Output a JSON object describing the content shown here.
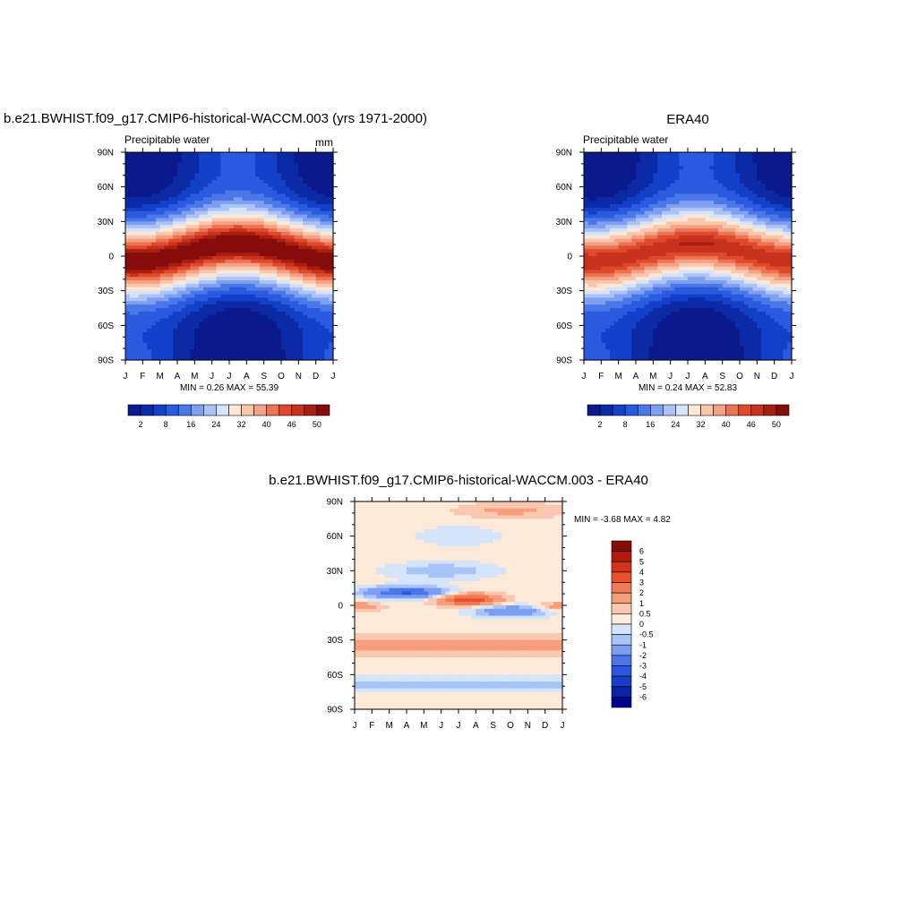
{
  "colorbar_colors": [
    "#0a1a8c",
    "#0d2aa6",
    "#1340c8",
    "#2a5ae0",
    "#4a78e8",
    "#7f9ff0",
    "#aec3f5",
    "#d6e3fa",
    "#fde8d6",
    "#f8c7ad",
    "#f4a184",
    "#ec7453",
    "#e04a2c",
    "#c8321c",
    "#a81e10",
    "#860c0c"
  ],
  "diff_colors": [
    "#00008c",
    "#0a23a6",
    "#1a3cc8",
    "#2b56e0",
    "#4a76ea",
    "#7b9ef2",
    "#aac3f6",
    "#d4e4fb",
    "#fde9d8",
    "#fac8b0",
    "#f69d7c",
    "#f07a52",
    "#e8502e",
    "#d4321a",
    "#b01a0c",
    "#860c0c"
  ],
  "panels": [
    {
      "title": "b.e21.BWHIST.f09_g17.CMIP6-historical-WACCM.003 (yrs 1971-2000)",
      "subtitle": "Precipitable water",
      "units": "mm",
      "stats": "MIN =   0.26 MAX =  55.39",
      "colorbar_labels": [
        "2",
        "8",
        "16",
        "24",
        "32",
        "40",
        "46",
        "50"
      ]
    },
    {
      "title": "ERA40",
      "subtitle": "Precipitable water",
      "units": "",
      "stats": "MIN =   0.24 MAX =  52.83",
      "colorbar_labels": [
        "2",
        "8",
        "16",
        "24",
        "32",
        "40",
        "46",
        "50"
      ]
    },
    {
      "title": "b.e21.BWHIST.f09_g17.CMIP6-historical-WACCM.003 - ERA40",
      "stats": "MIN =  -3.68 MAX =   4.82",
      "colorbar_labels": [
        "6",
        "5",
        "4",
        "3",
        "2",
        "1",
        "0.5",
        "0",
        "-0.5",
        "-1",
        "-2",
        "-3",
        "-4",
        "-5",
        "-6"
      ]
    }
  ],
  "chart_data": [
    {
      "type": "heatmap",
      "title": "b.e21.BWHIST.f09_g17.CMIP6-historical-WACCM.003 (yrs 1971-2000)",
      "subtitle": "Precipitable water",
      "units": "mm",
      "x": [
        "J",
        "F",
        "M",
        "A",
        "M",
        "J",
        "J",
        "A",
        "S",
        "O",
        "N",
        "D",
        "J"
      ],
      "y": [
        "90N",
        "60N",
        "30N",
        "0",
        "30S",
        "60S",
        "90S"
      ],
      "ylim": [
        -90,
        90
      ],
      "levels": [
        2,
        8,
        16,
        24,
        32,
        40,
        46,
        50
      ],
      "min": 0.26,
      "max": 55.39,
      "field": {
        "equator_max": 50,
        "max_lat_range": [
          -6,
          12
        ],
        "polar_min": 2
      }
    },
    {
      "type": "heatmap",
      "title": "ERA40",
      "subtitle": "Precipitable water",
      "x": [
        "J",
        "F",
        "M",
        "A",
        "M",
        "J",
        "J",
        "A",
        "S",
        "O",
        "N",
        "D",
        "J"
      ],
      "y": [
        "90N",
        "60N",
        "30N",
        "0",
        "30S",
        "60S",
        "90S"
      ],
      "ylim": [
        -90,
        90
      ],
      "levels": [
        2,
        8,
        16,
        24,
        32,
        40,
        46,
        50
      ],
      "min": 0.24,
      "max": 52.83,
      "field": {
        "equator_max": 47,
        "max_lat_range": [
          -6,
          12
        ],
        "polar_min": 2
      }
    },
    {
      "type": "heatmap",
      "title": "b.e21.BWHIST.f09_g17.CMIP6-historical-WACCM.003 - ERA40",
      "x": [
        "J",
        "F",
        "M",
        "A",
        "M",
        "J",
        "J",
        "A",
        "S",
        "O",
        "N",
        "D",
        "J"
      ],
      "y": [
        "90N",
        "60N",
        "30N",
        "0",
        "30S",
        "60S",
        "90S"
      ],
      "ylim": [
        -90,
        90
      ],
      "levels": [
        -6,
        -5,
        -4,
        -3,
        -2,
        -1,
        -0.5,
        0,
        0.5,
        1,
        2,
        3,
        4,
        5,
        6
      ],
      "min": -3.68,
      "max": 4.82
    }
  ]
}
